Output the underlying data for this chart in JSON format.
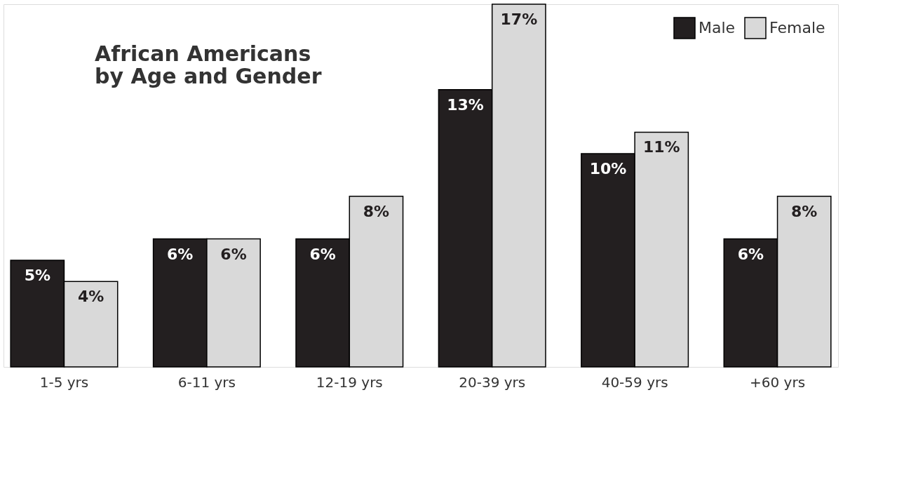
{
  "chart_data": {
    "type": "bar",
    "title": [
      "African Americans",
      "by Age and Gender"
    ],
    "categories": [
      "1-5 yrs",
      "6-11 yrs",
      "12-19 yrs",
      "20-39 yrs",
      "40-59 yrs",
      "+60 yrs"
    ],
    "series": [
      {
        "name": "Male",
        "color": "#231f20",
        "values": [
          5,
          6,
          6,
          13,
          10,
          6
        ],
        "value_labels": [
          "5%",
          "6%",
          "6%",
          "13%",
          "10%",
          "6%"
        ]
      },
      {
        "name": "Female",
        "color": "#d9d9d9",
        "values": [
          4,
          6,
          8,
          17,
          11,
          8
        ],
        "value_labels": [
          "4%",
          "6%",
          "8%",
          "17%",
          "11%",
          "8%"
        ]
      }
    ],
    "legend": "top right",
    "grid": false
  }
}
